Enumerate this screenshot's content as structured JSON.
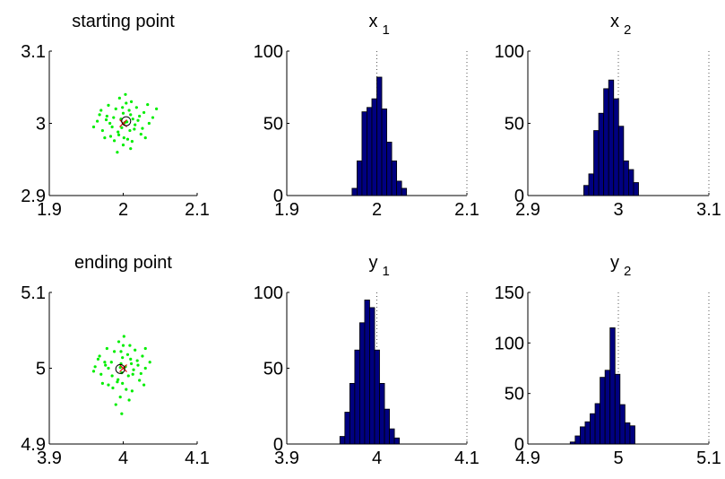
{
  "chart_data": [
    {
      "type": "scatter",
      "title": "starting point",
      "xlim": [
        1.9,
        2.1
      ],
      "ylim": [
        2.9,
        3.1
      ],
      "xticks": [
        "1.9",
        "2",
        "2.1"
      ],
      "yticks": [
        "2.9",
        "3",
        "3.1"
      ],
      "marker_color": "#00ee00",
      "center": [
        2.0,
        3.0
      ],
      "points": [
        [
          2.002,
          3.001
        ],
        [
          1.985,
          2.995
        ],
        [
          2.01,
          3.012
        ],
        [
          1.993,
          2.988
        ],
        [
          2.02,
          3.004
        ],
        [
          1.978,
          3.01
        ],
        [
          2.006,
          2.978
        ],
        [
          1.99,
          3.02
        ],
        [
          2.015,
          2.992
        ],
        [
          1.997,
          3.006
        ],
        [
          2.028,
          3.015
        ],
        [
          1.972,
          2.99
        ],
        [
          2.004,
          3.028
        ],
        [
          1.983,
          2.982
        ],
        [
          2.012,
          2.975
        ],
        [
          2.035,
          3.0
        ],
        [
          1.965,
          3.003
        ],
        [
          2.0,
          2.97
        ],
        [
          1.995,
          3.035
        ],
        [
          2.024,
          2.985
        ],
        [
          1.98,
          3.025
        ],
        [
          2.008,
          3.018
        ],
        [
          1.988,
          2.976
        ],
        [
          2.018,
          3.022
        ],
        [
          2.04,
          3.008
        ],
        [
          1.97,
          3.018
        ],
        [
          2.01,
          2.965
        ],
        [
          1.992,
          2.96
        ],
        [
          2.03,
          2.98
        ],
        [
          1.975,
          2.98
        ],
        [
          2.003,
          3.04
        ],
        [
          1.998,
          2.994
        ],
        [
          2.005,
          3.002
        ],
        [
          1.987,
          3.008
        ],
        [
          2.013,
          3.006
        ],
        [
          2.0,
          3.014
        ],
        [
          1.994,
          2.984
        ],
        [
          2.022,
          3.01
        ],
        [
          1.982,
          3.0
        ],
        [
          2.016,
          2.998
        ],
        [
          2.045,
          3.02
        ],
        [
          1.96,
          2.995
        ],
        [
          2.009,
          2.99
        ],
        [
          1.999,
          3.022
        ],
        [
          2.026,
          2.993
        ],
        [
          1.977,
          3.005
        ],
        [
          2.001,
          2.98
        ],
        [
          2.033,
          3.026
        ],
        [
          1.968,
          3.012
        ],
        [
          2.011,
          3.03
        ]
      ],
      "marker_x": [
        2.0,
        3.0
      ],
      "marker_o": [
        2.004,
        3.003
      ]
    },
    {
      "type": "bar",
      "title": "x_1",
      "title_main": "x",
      "title_sub": "1",
      "xlim": [
        1.9,
        2.1
      ],
      "ylim": [
        0,
        100
      ],
      "xticks": [
        "1.9",
        "2",
        "2.1"
      ],
      "yticks": [
        "0",
        "50",
        "100"
      ],
      "bin_start": 1.9725,
      "bin_width": 0.0055,
      "values": [
        5,
        24,
        58,
        61,
        67,
        82,
        60,
        37,
        24,
        10,
        5
      ],
      "reference_x": 2.0,
      "reference_right_x": 2.1,
      "bar_color": "#000080"
    },
    {
      "type": "bar",
      "title": "x_2",
      "title_main": "x",
      "title_sub": "2",
      "xlim": [
        2.9,
        3.1
      ],
      "ylim": [
        0,
        100
      ],
      "xticks": [
        "2.9",
        "3",
        "3.1"
      ],
      "yticks": [
        "0",
        "50",
        "100"
      ],
      "bin_start": 2.9618,
      "bin_width": 0.0055,
      "values": [
        7,
        15,
        45,
        57,
        74,
        80,
        67,
        48,
        24,
        18,
        9
      ],
      "reference_x": 3.0,
      "reference_right_x": 3.1,
      "bar_color": "#000080"
    },
    {
      "type": "scatter",
      "title": "ending point",
      "xlim": [
        3.9,
        4.1
      ],
      "ylim": [
        4.9,
        5.1
      ],
      "xticks": [
        "3.9",
        "4",
        "4.1"
      ],
      "yticks": [
        "4.9",
        "5",
        "5.1"
      ],
      "marker_color": "#00ee00",
      "center": [
        4.0,
        5.0
      ],
      "points": [
        [
          3.996,
          5.001
        ],
        [
          3.985,
          4.99
        ],
        [
          4.01,
          5.012
        ],
        [
          3.993,
          4.985
        ],
        [
          4.02,
          5.004
        ],
        [
          3.975,
          5.008
        ],
        [
          4.004,
          4.972
        ],
        [
          3.988,
          5.022
        ],
        [
          4.013,
          4.992
        ],
        [
          3.997,
          5.006
        ],
        [
          4.026,
          5.016
        ],
        [
          3.97,
          4.992
        ],
        [
          4.0,
          5.03
        ],
        [
          3.98,
          4.978
        ],
        [
          4.012,
          4.97
        ],
        [
          4.03,
          5.0
        ],
        [
          3.962,
          5.002
        ],
        [
          3.996,
          4.962
        ],
        [
          3.994,
          5.035
        ],
        [
          4.022,
          4.984
        ],
        [
          3.978,
          5.026
        ],
        [
          4.006,
          5.018
        ],
        [
          3.986,
          4.974
        ],
        [
          4.016,
          5.024
        ],
        [
          4.036,
          5.008
        ],
        [
          3.968,
          5.016
        ],
        [
          4.008,
          4.958
        ],
        [
          3.99,
          4.952
        ],
        [
          4.028,
          4.978
        ],
        [
          3.972,
          4.98
        ],
        [
          4.001,
          5.042
        ],
        [
          3.998,
          4.994
        ],
        [
          4.003,
          5.002
        ],
        [
          3.984,
          5.008
        ],
        [
          4.011,
          5.006
        ],
        [
          3.999,
          5.014
        ],
        [
          3.992,
          4.982
        ],
        [
          4.019,
          5.01
        ],
        [
          3.98,
          5.0
        ],
        [
          4.014,
          4.998
        ],
        [
          3.998,
          4.94
        ],
        [
          3.96,
          4.996
        ],
        [
          4.007,
          4.99
        ],
        [
          3.997,
          5.022
        ],
        [
          4.024,
          4.993
        ],
        [
          3.976,
          5.004
        ],
        [
          3.999,
          4.98
        ],
        [
          4.03,
          5.026
        ],
        [
          3.966,
          5.012
        ],
        [
          4.009,
          5.03
        ]
      ],
      "marker_x": [
        4.0,
        5.0
      ],
      "marker_o": [
        3.996,
        4.999
      ]
    },
    {
      "type": "bar",
      "title": "y_1",
      "title_main": "y",
      "title_sub": "1",
      "xlim": [
        3.9,
        4.1
      ],
      "ylim": [
        0,
        100
      ],
      "xticks": [
        "3.9",
        "4",
        "4.1"
      ],
      "yticks": [
        "0",
        "50",
        "100"
      ],
      "bin_start": 3.959,
      "bin_width": 0.0055,
      "values": [
        5,
        21,
        40,
        62,
        80,
        95,
        90,
        62,
        40,
        23,
        10,
        4
      ],
      "reference_x": 4.0,
      "reference_right_x": 4.1,
      "bar_color": "#000080"
    },
    {
      "type": "bar",
      "title": "y_2",
      "title_main": "y",
      "title_sub": "2",
      "xlim": [
        4.9,
        5.1
      ],
      "ylim": [
        0,
        150
      ],
      "xticks": [
        "4.9",
        "5",
        "5.1"
      ],
      "yticks": [
        "0",
        "50",
        "100",
        "150"
      ],
      "bin_start": 4.9468,
      "bin_width": 0.0055,
      "values": [
        2,
        8,
        17,
        22,
        30,
        40,
        66,
        73,
        115,
        69,
        39,
        21,
        18
      ],
      "reference_x": 5.0,
      "reference_right_x": 5.1,
      "bar_color": "#000080"
    }
  ]
}
